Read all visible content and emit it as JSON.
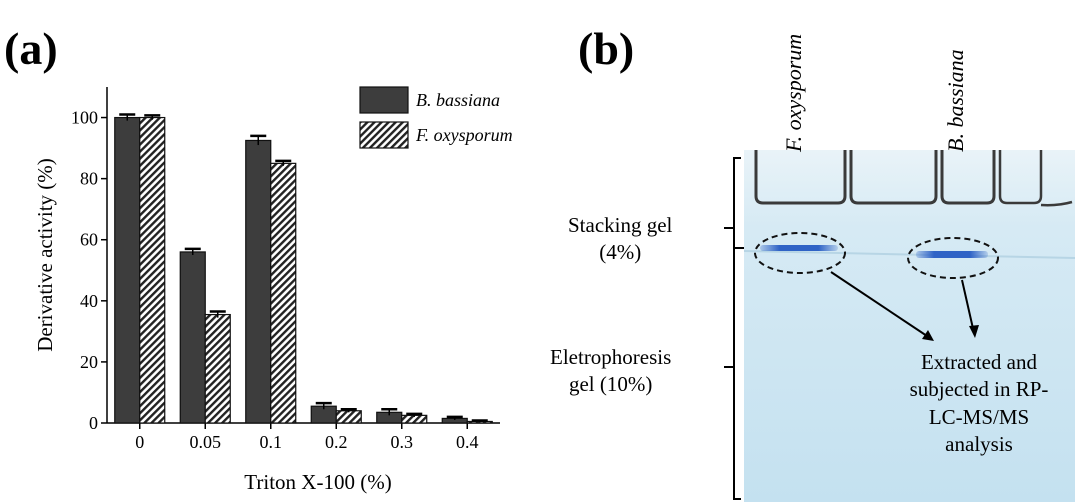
{
  "panel_a": {
    "label": "(a)"
  },
  "panel_b": {
    "label": "(b)",
    "lane_labels": [
      "F. oxysporum",
      "B. bassiana"
    ],
    "stacking_gel": [
      "Stacking gel",
      "(4%)"
    ],
    "electrophoresis_gel": [
      "Eletrophoresis",
      "gel (10%)"
    ],
    "annotation": [
      "Extracted and",
      "subjected in RP-",
      "LC-MS/MS",
      "analysis"
    ],
    "colors": {
      "gel": "#c9e4f2",
      "band": "#2f63c6",
      "well": "#3a3a3a"
    }
  },
  "chart_data": {
    "type": "bar",
    "categories": [
      "0",
      "0.05",
      "0.1",
      "0.2",
      "0.3",
      "0.4"
    ],
    "series": [
      {
        "name": "B. bassiana",
        "values": [
          100,
          56,
          92.5,
          5.5,
          3.5,
          1.5
        ],
        "errors": [
          1,
          1,
          1.5,
          1,
          1,
          0.5
        ],
        "color": "#3d3d3d",
        "pattern": "solid"
      },
      {
        "name": "F. oxysporum",
        "values": [
          100,
          35.5,
          85,
          4,
          2.5,
          0.5
        ],
        "errors": [
          0.7,
          1,
          0.8,
          0.5,
          0.5,
          0.3
        ],
        "color": "#222222",
        "pattern": "hatched"
      }
    ],
    "xlabel": "Triton X-100 (%)",
    "ylabel": "Derivative activity (%)",
    "ylim": [
      0,
      110
    ],
    "yticks": [
      0,
      20,
      40,
      60,
      80,
      100
    ],
    "legend": "top-right",
    "grid": false
  }
}
